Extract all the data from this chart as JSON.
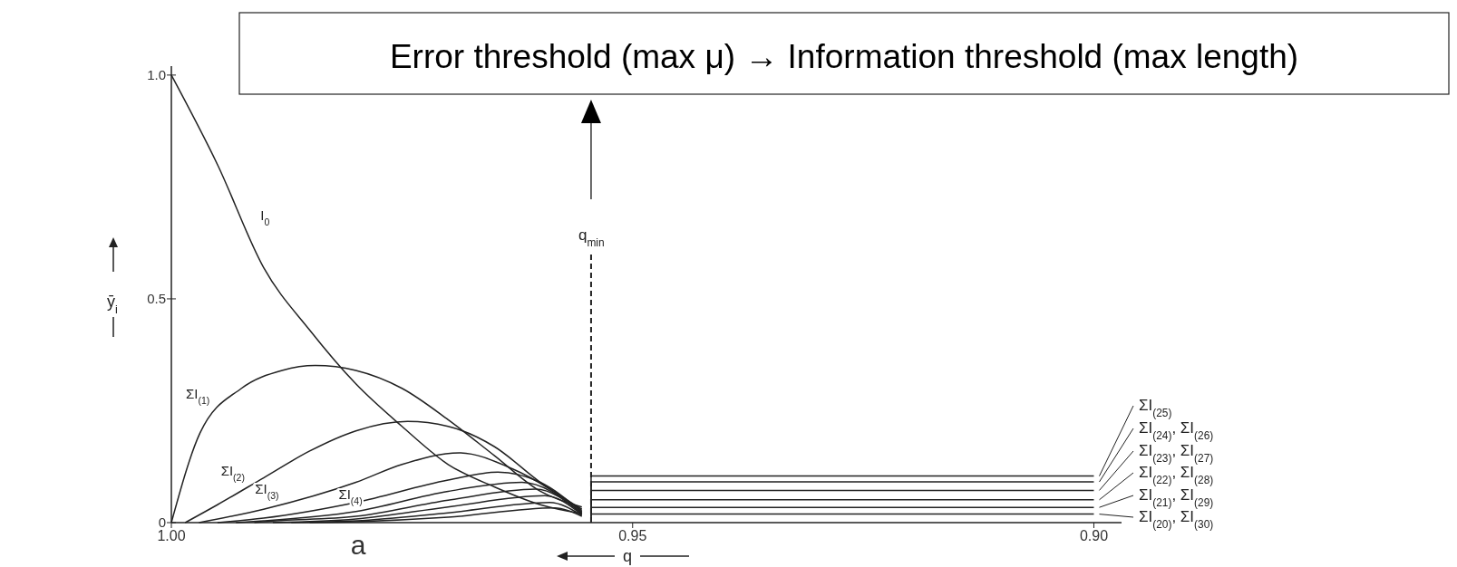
{
  "chart_data": {
    "type": "line",
    "xlabel": "q",
    "ylabel": "ȳ$_{i}$",
    "xlim": [
      1.0,
      0.897
    ],
    "ylim": [
      0,
      1.02
    ],
    "xticks": [
      {
        "value": 1.0,
        "label": "1.00"
      },
      0.95,
      {
        "value": 0.9,
        "label": "0.90"
      }
    ],
    "yticks": [
      0,
      0.5,
      {
        "value": 1.0,
        "label": "1.0"
      }
    ],
    "grid": false,
    "legend": "right",
    "line_style": "solid",
    "marker": "none",
    "ref_lines": [
      {
        "axis": "x",
        "value": 0.9545,
        "label": "q$_{min}$",
        "line_style": "dashed",
        "color": "#222222"
      }
    ],
    "annotations": [
      "Error threshold (max μ) → Information threshold (max length)",
      "a"
    ],
    "series": [
      {
        "name": "I$_{0}$",
        "color": "#222222",
        "x": [
          1.0,
          0.995,
          0.99,
          0.985,
          0.98,
          0.975,
          0.97,
          0.965,
          0.96,
          0.9555
        ],
        "values": [
          1.0,
          0.8,
          0.57,
          0.43,
          0.31,
          0.215,
          0.13,
          0.08,
          0.04,
          0.02
        ]
      },
      {
        "name": "ΣI$_{(1)}$",
        "color": "#222222",
        "x": [
          1.0,
          0.9969,
          0.9924,
          0.988,
          0.9844,
          0.98,
          0.975,
          0.97,
          0.965,
          0.96,
          0.9555
        ],
        "values": [
          0,
          0.2,
          0.3,
          0.34,
          0.351,
          0.34,
          0.3,
          0.23,
          0.15,
          0.07,
          0.035
        ]
      },
      {
        "name": "ΣI$_{(2)}$",
        "color": "#222222",
        "x": [
          0.9985,
          0.995,
          0.99,
          0.985,
          0.98,
          0.9744,
          0.97,
          0.965,
          0.96,
          0.9555
        ],
        "values": [
          0,
          0.04,
          0.1,
          0.16,
          0.205,
          0.226,
          0.215,
          0.17,
          0.09,
          0.03
        ]
      },
      {
        "name": "ΣI$_{(3)}$",
        "color": "#222222",
        "x": [
          0.997,
          0.99,
          0.98,
          0.975,
          0.9688,
          0.963,
          0.9555
        ],
        "values": [
          0,
          0.03,
          0.09,
          0.13,
          0.156,
          0.12,
          0.027
        ]
      },
      {
        "name": "ΣI$_{(4)}$",
        "color": "#222222",
        "x": [
          0.995,
          0.99,
          0.98,
          0.97,
          0.9646,
          0.96,
          0.9555
        ],
        "values": [
          0,
          0.01,
          0.045,
          0.095,
          0.113,
          0.09,
          0.024
        ]
      },
      {
        "color": "#222222",
        "x": [
          0.993,
          0.99,
          0.98,
          0.97,
          0.962,
          0.9555
        ],
        "values": [
          0,
          0.004,
          0.025,
          0.07,
          0.09,
          0.022
        ]
      },
      {
        "color": "#222222",
        "x": [
          0.991,
          0.99,
          0.98,
          0.97,
          0.9605,
          0.9555
        ],
        "values": [
          0,
          0.002,
          0.014,
          0.05,
          0.075,
          0.02
        ]
      },
      {
        "color": "#222222",
        "x": [
          0.989,
          0.98,
          0.97,
          0.9595,
          0.9555
        ],
        "values": [
          0,
          0.008,
          0.035,
          0.06,
          0.018
        ]
      },
      {
        "color": "#222222",
        "x": [
          0.987,
          0.98,
          0.97,
          0.959,
          0.9555
        ],
        "values": [
          0,
          0.004,
          0.022,
          0.045,
          0.016
        ]
      },
      {
        "color": "#222222",
        "x": [
          0.985,
          0.98,
          0.97,
          0.9585,
          0.9555
        ],
        "values": [
          0,
          0.002,
          0.012,
          0.033,
          0.014
        ]
      },
      {
        "name": "ΣI$_{(25)}$",
        "color": "#222222",
        "x": [
          0.9545,
          0.9545,
          0.9
        ],
        "values": [
          0.04,
          0.104,
          0.104
        ]
      },
      {
        "name": "ΣI$_{(24)}$, ΣI$_{(26)}$",
        "color": "#222222",
        "x": [
          0.9545,
          0.9545,
          0.9
        ],
        "values": [
          0.03,
          0.091,
          0.091
        ]
      },
      {
        "name": "ΣI$_{(23)}$, ΣI$_{(27)}$",
        "color": "#222222",
        "x": [
          0.9545,
          0.9545,
          0.9
        ],
        "values": [
          0.02,
          0.072,
          0.072
        ]
      },
      {
        "name": "ΣI$_{(22)}$, ΣI$_{(28)}$",
        "color": "#222222",
        "x": [
          0.9545,
          0.9545,
          0.9
        ],
        "values": [
          0.015,
          0.051,
          0.051
        ]
      },
      {
        "name": "ΣI$_{(21)}$, ΣI$_{(29)}$",
        "color": "#222222",
        "x": [
          0.9545,
          0.9545,
          0.9
        ],
        "values": [
          0.01,
          0.034,
          0.034
        ]
      },
      {
        "name": "ΣI$_{(20)}$, ΣI$_{(30)}$",
        "color": "#222222",
        "x": [
          0.9545,
          0.9545,
          0.9
        ],
        "values": [
          0.005,
          0.019,
          0.019
        ]
      }
    ]
  }
}
